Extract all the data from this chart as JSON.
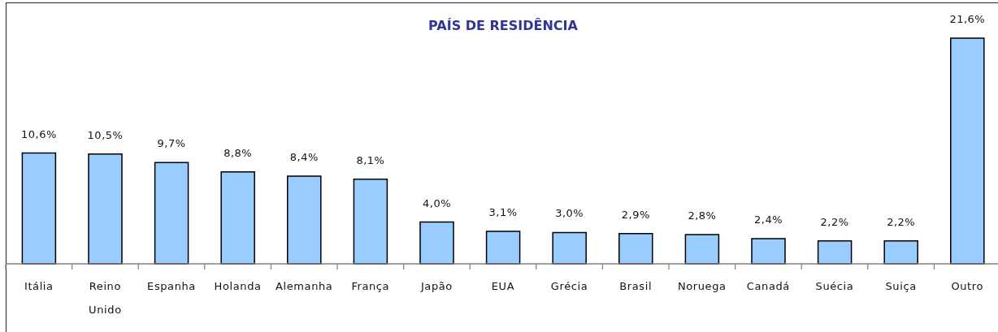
{
  "chart_data": {
    "type": "bar",
    "title": "PAÍS DE RESIDÊNCIA",
    "categories": [
      "Itália",
      "Reino Unido",
      "Espanha",
      "Holanda",
      "Alemanha",
      "França",
      "Japão",
      "EUA",
      "Grécia",
      "Brasil",
      "Noruega",
      "Canadá",
      "Suécia",
      "Suiça",
      "Outro"
    ],
    "values": [
      10.6,
      10.5,
      9.7,
      8.8,
      8.4,
      8.1,
      4.0,
      3.1,
      3.0,
      2.9,
      2.8,
      2.4,
      2.2,
      2.2,
      21.6
    ],
    "value_labels": [
      "10,6%",
      "10,5%",
      "9,7%",
      "8,8%",
      "8,4%",
      "8,1%",
      "4,0%",
      "3,1%",
      "3,0%",
      "2,9%",
      "2,8%",
      "2,4%",
      "2,2%",
      "2,2%",
      "21,6%"
    ],
    "color": "#99ccff"
  }
}
